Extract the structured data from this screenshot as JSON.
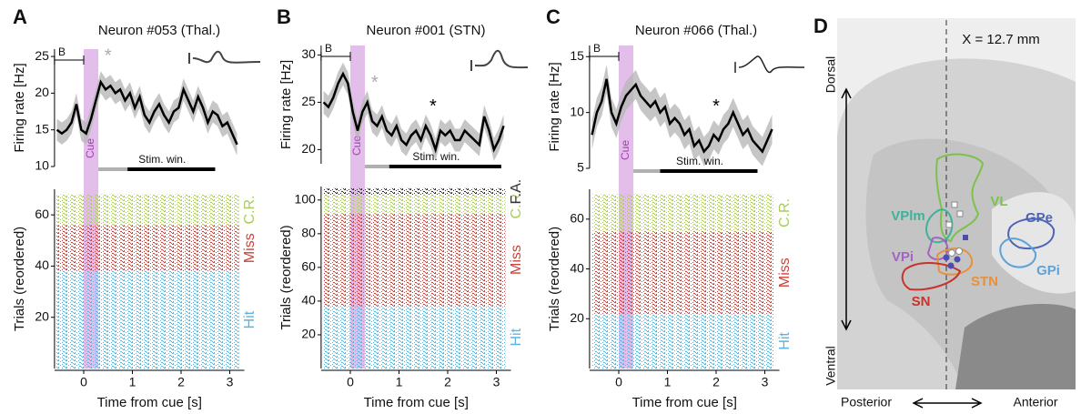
{
  "chart_data": [
    {
      "type": "line",
      "panel": "A",
      "title": "Neuron #053 (Thal.)",
      "ylabel": "Firing rate [Hz]",
      "color": "#000000",
      "band_color": "#b8b8b8",
      "x": [
        -0.55,
        -0.45,
        -0.35,
        -0.25,
        -0.15,
        -0.05,
        0.05,
        0.15,
        0.25,
        0.35,
        0.45,
        0.55,
        0.65,
        0.75,
        0.85,
        0.95,
        1.05,
        1.15,
        1.25,
        1.35,
        1.45,
        1.55,
        1.65,
        1.75,
        1.85,
        1.95,
        2.05,
        2.15,
        2.25,
        2.35,
        2.45,
        2.55,
        2.65,
        2.75,
        2.85,
        2.95,
        3.05,
        3.15
      ],
      "values": [
        15,
        14.5,
        15,
        16,
        18.5,
        15,
        14.5,
        16.5,
        19,
        21.5,
        20.5,
        21,
        20,
        20.5,
        19,
        20,
        18,
        19.5,
        17,
        16,
        17.5,
        18.5,
        17,
        16,
        17.5,
        18,
        20.5,
        19,
        17.5,
        19.5,
        18,
        16,
        17.5,
        17,
        15.5,
        16,
        14.5,
        13
      ],
      "sem": 1.5,
      "xlim": [
        -0.6,
        3.3
      ],
      "ylim": [
        10,
        26
      ],
      "yticks": [
        10,
        15,
        20,
        25
      ],
      "baseline": {
        "label": "B",
        "range": [
          -0.6,
          0
        ]
      },
      "cue": {
        "label": "Cue",
        "range": [
          0,
          0.3
        ],
        "color": "#dcaee6"
      },
      "pre_window": [
        0.3,
        0.9
      ],
      "window": {
        "label": "Stim. win.",
        "range": [
          0.9,
          2.7
        ]
      },
      "markers": [
        {
          "label": "*",
          "x": 0.5,
          "y": 25,
          "color": "#aaaaaa"
        }
      ]
    },
    {
      "type": "raster",
      "panel": "A",
      "xlabel": "Time from cue [s]",
      "ylabel": "Trials (reordered)",
      "xlim": [
        -0.6,
        3.3
      ],
      "xticks": [
        0,
        1,
        2,
        3
      ],
      "ylim": [
        0,
        70
      ],
      "yticks": [
        20,
        40,
        60
      ],
      "cue_of": 0,
      "series": [
        {
          "name": "Hit",
          "color": "#5ab4e0",
          "values": [
            1,
            38
          ]
        },
        {
          "name": "Miss",
          "color": "#c8433b",
          "values": [
            39,
            56
          ]
        },
        {
          "name": "C.R.",
          "color": "#a9cc5a",
          "values": [
            57,
            68
          ]
        }
      ]
    },
    {
      "type": "line",
      "panel": "B",
      "title": "Neuron #001 (STN)",
      "ylabel": "Firing rate [Hz]",
      "color": "#000000",
      "band_color": "#b8b8b8",
      "x": [
        -0.55,
        -0.45,
        -0.35,
        -0.25,
        -0.15,
        -0.05,
        0.05,
        0.15,
        0.25,
        0.35,
        0.45,
        0.55,
        0.65,
        0.75,
        0.85,
        0.95,
        1.05,
        1.15,
        1.25,
        1.35,
        1.45,
        1.55,
        1.65,
        1.75,
        1.85,
        1.95,
        2.05,
        2.15,
        2.25,
        2.35,
        2.45,
        2.55,
        2.65,
        2.75,
        2.85,
        2.95,
        3.05,
        3.15
      ],
      "values": [
        25,
        24.5,
        25.5,
        27,
        28,
        27,
        24,
        22,
        24,
        25,
        23,
        22.5,
        23.5,
        22,
        21.5,
        22.5,
        21,
        20.5,
        21.5,
        22,
        21,
        22.5,
        21.5,
        20,
        22,
        21.5,
        22,
        21,
        21,
        22,
        21.5,
        21,
        20.5,
        23.5,
        22,
        20,
        21,
        22.5
      ],
      "sem": 1.2,
      "xlim": [
        -0.6,
        3.3
      ],
      "ylim": [
        18.5,
        31
      ],
      "yticks": [
        20,
        25,
        30
      ],
      "baseline": {
        "label": "B",
        "range": [
          -0.6,
          0
        ]
      },
      "cue": {
        "label": "Cue",
        "range": [
          0,
          0.3
        ],
        "color": "#dcaee6"
      },
      "pre_window": [
        0.3,
        0.8
      ],
      "window": {
        "label": "Stim. win.",
        "range": [
          0.8,
          3.1
        ]
      },
      "markers": [
        {
          "label": "*",
          "x": 0.5,
          "y": 27,
          "color": "#aaaaaa"
        },
        {
          "label": "*",
          "x": 1.7,
          "y": 24.5,
          "color": "#000000"
        }
      ]
    },
    {
      "type": "raster",
      "panel": "B",
      "xlabel": "Time from cue [s]",
      "ylabel": "Trials (reordered)",
      "xlim": [
        -0.6,
        3.3
      ],
      "xticks": [
        0,
        1,
        2,
        3
      ],
      "ylim": [
        0,
        108
      ],
      "yticks": [
        20,
        40,
        60,
        80,
        100
      ],
      "cue_of": 2,
      "series": [
        {
          "name": "Hit",
          "color": "#5ab4e0",
          "values": [
            1,
            37
          ]
        },
        {
          "name": "Miss",
          "color": "#c8433b",
          "values": [
            38,
            92
          ]
        },
        {
          "name": "C.R.",
          "color": "#a9cc5a",
          "values": [
            93,
            103
          ]
        },
        {
          "name": "F.A.",
          "color": "#333333",
          "values": [
            104,
            107
          ]
        }
      ]
    },
    {
      "type": "line",
      "panel": "C",
      "title": "Neuron #066 (Thal.)",
      "ylabel": "Firing rate [Hz]",
      "color": "#000000",
      "band_color": "#b8b8b8",
      "x": [
        -0.55,
        -0.45,
        -0.35,
        -0.25,
        -0.15,
        -0.05,
        0.05,
        0.15,
        0.25,
        0.35,
        0.45,
        0.55,
        0.65,
        0.75,
        0.85,
        0.95,
        1.05,
        1.15,
        1.25,
        1.35,
        1.45,
        1.55,
        1.65,
        1.75,
        1.85,
        1.95,
        2.05,
        2.15,
        2.25,
        2.35,
        2.45,
        2.55,
        2.65,
        2.75,
        2.85,
        2.95,
        3.05,
        3.15
      ],
      "values": [
        8,
        10,
        11,
        13,
        10,
        9,
        10.5,
        11.5,
        12,
        12.5,
        11.5,
        11,
        10.5,
        11,
        10,
        10.5,
        9,
        9.5,
        9,
        8,
        8.5,
        7,
        7.5,
        6.5,
        7,
        8,
        7.5,
        8.5,
        9,
        10,
        9,
        8,
        8.5,
        7.5,
        7,
        6.5,
        7.5,
        8.5
      ],
      "sem": 1.3,
      "xlim": [
        -0.6,
        3.3
      ],
      "ylim": [
        5,
        16
      ],
      "yticks": [
        5,
        10,
        15
      ],
      "baseline": {
        "label": "B",
        "range": [
          -0.6,
          0
        ]
      },
      "cue": {
        "label": "Cue",
        "range": [
          0,
          0.3
        ],
        "color": "#dcaee6"
      },
      "pre_window": [
        0.3,
        0.85
      ],
      "window": {
        "label": "Stim. win.",
        "range": [
          0.85,
          2.85
        ]
      },
      "markers": [
        {
          "label": "*",
          "x": 2.0,
          "y": 10.5,
          "color": "#000000"
        }
      ]
    },
    {
      "type": "raster",
      "panel": "C",
      "xlabel": "Time from cue [s]",
      "ylabel": "Trials (reordered)",
      "xlim": [
        -0.6,
        3.3
      ],
      "xticks": [
        0,
        1,
        2,
        3
      ],
      "ylim": [
        0,
        72
      ],
      "yticks": [
        20,
        40,
        60
      ],
      "cue_of": 4,
      "series": [
        {
          "name": "Hit",
          "color": "#5ab4e0",
          "values": [
            1,
            22
          ]
        },
        {
          "name": "Miss",
          "color": "#c8433b",
          "values": [
            23,
            55
          ]
        },
        {
          "name": "C.R.",
          "color": "#a9cc5a",
          "values": [
            56,
            70
          ]
        }
      ]
    }
  ],
  "atlas": {
    "panel": "D",
    "label": "X = 12.7 mm",
    "dorsal": "Dorsal",
    "ventral": "Ventral",
    "posterior": "Posterior",
    "anterior": "Anterior",
    "regions": [
      {
        "label": "VL",
        "color": "#7cc24a"
      },
      {
        "label": "VPlm",
        "color": "#3bb39b"
      },
      {
        "label": "GPe",
        "color": "#4d63b5"
      },
      {
        "label": "VPi",
        "color": "#a463c0"
      },
      {
        "label": "STN",
        "color": "#e8913a"
      },
      {
        "label": "GPi",
        "color": "#5aa3db"
      },
      {
        "label": "SN",
        "color": "#c8332b"
      }
    ]
  }
}
